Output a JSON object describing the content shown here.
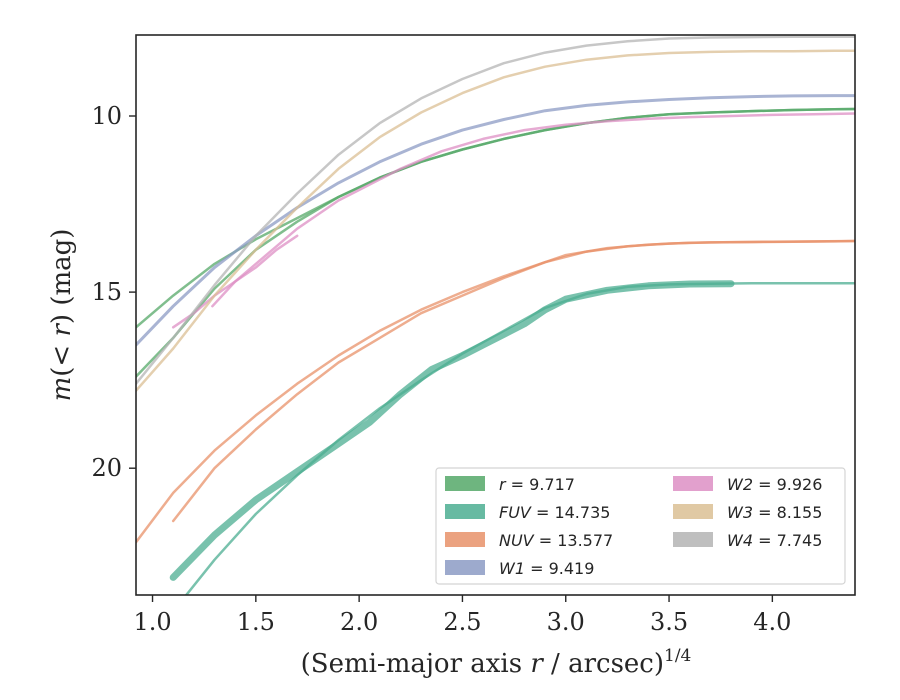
{
  "chart_data": {
    "type": "line",
    "xlabel_text": "(Semi-major axis ",
    "xlabel_var": "r",
    "xlabel_rest": " / arcsec)",
    "xlabel_sup": "1/4",
    "ylabel_pre": "m",
    "ylabel_mid": "(< ",
    "ylabel_var": "r",
    "ylabel_post": ") (mag)",
    "xlim": [
      0.92,
      4.4
    ],
    "ylim": [
      23.6,
      7.7
    ],
    "y_inverted": true,
    "xticks": [
      1.0,
      1.5,
      2.0,
      2.5,
      3.0,
      3.5,
      4.0
    ],
    "xtick_labels": [
      "1.0",
      "1.5",
      "2.0",
      "2.5",
      "3.0",
      "3.5",
      "4.0"
    ],
    "yticks": [
      10,
      15,
      20
    ],
    "ytick_labels": [
      "10",
      "15",
      "20"
    ],
    "legend_position": "lower right",
    "series": [
      {
        "name_sym": "r",
        "name_val": " = 9.717",
        "color": "#55a868",
        "curves": [
          {
            "x": [
              0.92,
              1.1,
              1.3,
              1.5,
              1.7,
              1.9,
              2.1,
              2.3,
              2.5,
              2.7,
              2.9,
              3.1,
              3.3,
              3.5,
              3.7,
              3.9,
              4.1,
              4.3,
              4.4
            ],
            "y": [
              16.0,
              15.1,
              14.2,
              13.5,
              12.9,
              12.3,
              11.75,
              11.3,
              10.95,
              10.65,
              10.4,
              10.2,
              10.05,
              9.95,
              9.9,
              9.86,
              9.83,
              9.81,
              9.8
            ],
            "width": 2.5
          },
          {
            "x": [
              0.92,
              1.1,
              1.3,
              1.5,
              1.7,
              1.9,
              2.1,
              2.3,
              2.5,
              2.7,
              2.9,
              3.1,
              3.3,
              3.5,
              3.7,
              3.9,
              4.1,
              4.3,
              4.4
            ],
            "y": [
              17.4,
              16.3,
              14.9,
              13.8,
              13.0,
              12.3,
              11.75,
              11.3,
              10.95,
              10.65,
              10.4,
              10.2,
              10.05,
              9.95,
              9.9,
              9.86,
              9.83,
              9.81,
              9.8
            ],
            "width": 2.5
          }
        ]
      },
      {
        "name_sym": "FUV",
        "name_val": " = 14.735",
        "color": "#4cae92",
        "curves": [
          {
            "x": [
              1.1,
              1.3,
              1.5,
              1.7,
              1.9,
              2.05,
              2.2,
              2.35,
              2.5,
              2.6,
              2.7,
              2.8,
              2.9,
              3.0,
              3.2,
              3.4,
              3.6,
              3.8
            ],
            "y": [
              23.1,
              21.9,
              20.9,
              20.1,
              19.3,
              18.7,
              17.9,
              17.2,
              16.8,
              16.5,
              16.2,
              15.9,
              15.5,
              15.2,
              14.95,
              14.82,
              14.77,
              14.76
            ],
            "width": 7
          },
          {
            "x": [
              1.15,
              1.3,
              1.5,
              1.7,
              1.9,
              2.1,
              2.3,
              2.5,
              2.7,
              2.9,
              3.1,
              3.3,
              3.5,
              3.7,
              3.9,
              4.1,
              4.3,
              4.4
            ],
            "y": [
              23.7,
              22.6,
              21.3,
              20.2,
              19.2,
              18.3,
              17.5,
              16.75,
              16.1,
              15.45,
              15.05,
              14.85,
              14.78,
              14.76,
              14.75,
              14.75,
              14.75,
              14.75
            ],
            "width": 2.5
          }
        ]
      },
      {
        "name_sym": "NUV",
        "name_val": " = 13.577",
        "color": "#e8926a",
        "curves": [
          {
            "x": [
              1.1,
              1.3,
              1.5,
              1.7,
              1.9,
              2.1,
              2.3,
              2.5,
              2.7,
              2.9,
              3.0,
              3.2,
              3.4,
              3.6,
              3.8,
              4.0,
              4.2,
              4.4
            ],
            "y": [
              21.5,
              20.0,
              18.9,
              17.9,
              17.0,
              16.3,
              15.6,
              15.1,
              14.6,
              14.15,
              13.95,
              13.75,
              13.65,
              13.6,
              13.58,
              13.57,
              13.56,
              13.55
            ],
            "width": 2.5
          },
          {
            "x": [
              0.92,
              1.1,
              1.3,
              1.5,
              1.7,
              1.9,
              2.1,
              2.3,
              2.5,
              2.7,
              2.9,
              3.1,
              3.3,
              3.5,
              3.7,
              3.9,
              4.1,
              4.3,
              4.4
            ],
            "y": [
              22.1,
              20.7,
              19.5,
              18.5,
              17.6,
              16.8,
              16.1,
              15.5,
              15.0,
              14.55,
              14.15,
              13.85,
              13.7,
              13.62,
              13.59,
              13.58,
              13.57,
              13.56,
              13.55
            ],
            "width": 2.5
          }
        ]
      },
      {
        "name_sym": "W1",
        "name_val": " = 9.419",
        "color": "#8c9bc4",
        "curves": [
          {
            "x": [
              0.92,
              1.1,
              1.3,
              1.5,
              1.7,
              1.9,
              2.1,
              2.3,
              2.5,
              2.7,
              2.9,
              3.1,
              3.3,
              3.5,
              3.7,
              3.9,
              4.1,
              4.3,
              4.4
            ],
            "y": [
              16.5,
              15.4,
              14.3,
              13.4,
              12.6,
              11.9,
              11.3,
              10.8,
              10.4,
              10.1,
              9.85,
              9.7,
              9.6,
              9.53,
              9.48,
              9.45,
              9.43,
              9.42,
              9.42
            ],
            "width": 3
          }
        ]
      },
      {
        "name_sym": "W2",
        "name_val": " = 9.926",
        "color": "#dd8fc4",
        "curves": [
          {
            "x": [
              1.29,
              1.4,
              1.5,
              1.6,
              1.7,
              1.8,
              1.9,
              2.0,
              2.2,
              2.4,
              2.6,
              2.8,
              3.0,
              3.2,
              3.4,
              3.6,
              3.8,
              4.0,
              4.2,
              4.4
            ],
            "y": [
              15.4,
              14.7,
              14.2,
              13.7,
              13.2,
              12.8,
              12.4,
              12.1,
              11.5,
              11.0,
              10.65,
              10.4,
              10.25,
              10.15,
              10.08,
              10.03,
              10.0,
              9.97,
              9.95,
              9.93
            ],
            "width": 2.5
          },
          {
            "x": [
              1.1,
              1.2,
              1.3,
              1.4,
              1.5,
              1.6,
              1.7
            ],
            "y": [
              16.0,
              15.6,
              15.1,
              14.7,
              14.3,
              13.8,
              13.4
            ],
            "width": 2.5
          }
        ]
      },
      {
        "name_sym": "W3",
        "name_val": " = 8.155",
        "color": "#dbbf94",
        "curves": [
          {
            "x": [
              0.92,
              1.1,
              1.3,
              1.5,
              1.7,
              1.9,
              2.1,
              2.3,
              2.5,
              2.7,
              2.9,
              3.1,
              3.3,
              3.5,
              3.7,
              3.9,
              4.1,
              4.3,
              4.4
            ],
            "y": [
              17.8,
              16.6,
              15.1,
              13.8,
              12.6,
              11.5,
              10.6,
              9.9,
              9.35,
              8.9,
              8.6,
              8.4,
              8.28,
              8.21,
              8.18,
              8.16,
              8.16,
              8.15,
              8.15
            ],
            "width": 2.5
          }
        ]
      },
      {
        "name_sym": "W4",
        "name_val": " = 7.745",
        "color": "#b4b4b4",
        "curves": [
          {
            "x": [
              0.92,
              1.1,
              1.3,
              1.5,
              1.7,
              1.9,
              2.1,
              2.3,
              2.5,
              2.7,
              2.9,
              3.1,
              3.3,
              3.5,
              3.7,
              3.9,
              4.1,
              4.3,
              4.4
            ],
            "y": [
              17.6,
              16.3,
              14.8,
              13.4,
              12.2,
              11.1,
              10.2,
              9.5,
              8.95,
              8.5,
              8.2,
              8.0,
              7.88,
              7.8,
              7.77,
              7.76,
              7.75,
              7.75,
              7.75
            ],
            "width": 2.5
          }
        ]
      }
    ]
  }
}
